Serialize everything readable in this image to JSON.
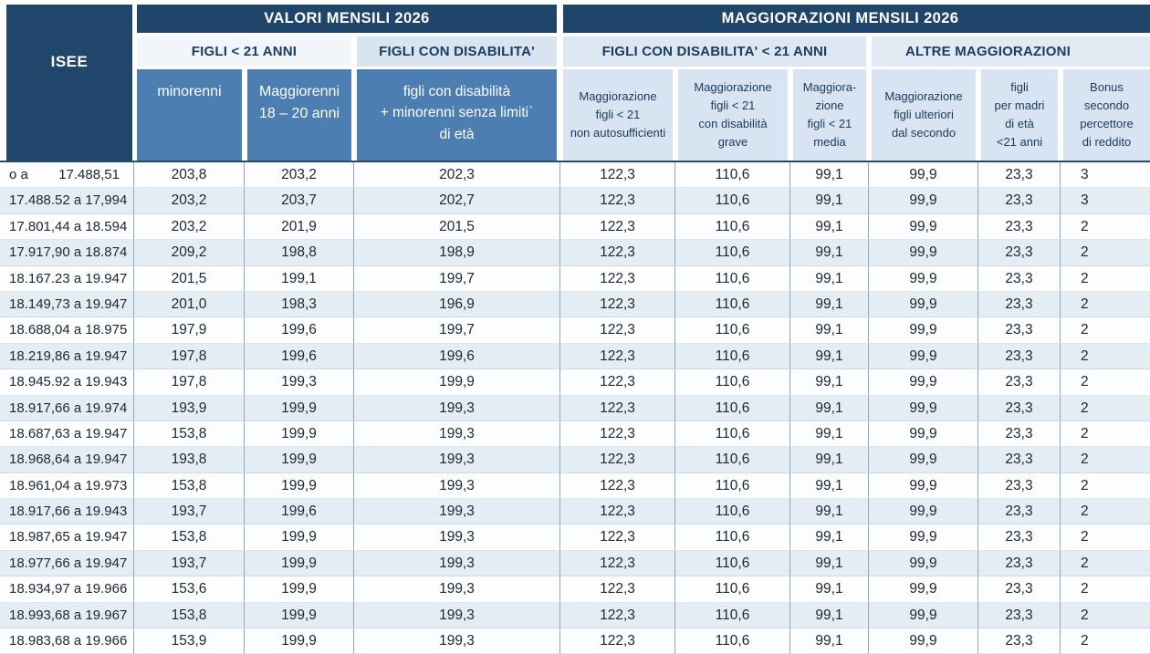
{
  "header": {
    "isee": "ISEE",
    "band_valori": "VALORI MENSILI 2026",
    "band_maggiorazioni": "MAGGIORAZIONI MENSILI 2026",
    "group_figli_u21": "FIGLI < 21 ANNI",
    "group_figli_disabilita": "FIGLI CON DISABILITA'",
    "group_figli_disabilita_u21": "FIGLI CON DISABILITA' < 21 ANNI",
    "group_altre_maggiorazioni": "ALTRE MAGGIORAZIONI",
    "columns": [
      "minorenni",
      "Maggiorenni\n18 – 20 anni",
      "figli con disabilità\n+ minorenni senza limiti`\ndi età",
      "Maggiorazione\nfigli < 21\nnon autosufficienti",
      "Maggiorazione\nfigli < 21\ncon disabilità\ngrave",
      "Maggiora-\nzione\nfigli < 21\nmedia",
      "Maggiorazione\nfigli ulteriori\ndal secondo",
      "figli\nper madri\ndi età\n<21 anni",
      "Bonus\nsecondo\npercettore\ndi reddito"
    ]
  },
  "rows": [
    {
      "isee": "o a        17.488,51",
      "values": [
        "203,8",
        "203,2",
        "202,3",
        "122,3",
        "110,6",
        "99,1",
        "99,9",
        "23,3",
        "3"
      ]
    },
    {
      "isee": "17.488.52 a 17,994",
      "values": [
        "203,2",
        "203,7",
        "202,7",
        "122,3",
        "110,6",
        "99,1",
        "99,9",
        "23,3",
        "3"
      ]
    },
    {
      "isee": "17.801,44 a 18.594",
      "values": [
        "203,2",
        "201,9",
        "201,5",
        "122,3",
        "110,6",
        "99,1",
        "99,9",
        "23,3",
        "2"
      ]
    },
    {
      "isee": "17.917,90 a 18.874",
      "values": [
        "209,2",
        "198,8",
        "198,9",
        "122,3",
        "110,6",
        "99,1",
        "99,9",
        "23,3",
        "2"
      ]
    },
    {
      "isee": "18.167.23 a 19.947",
      "values": [
        "201,5",
        "199,1",
        "199,7",
        "122,3",
        "110,6",
        "99,1",
        "99,9",
        "23,3",
        "2"
      ]
    },
    {
      "isee": "18.149,73 a 19.947",
      "values": [
        "201,0",
        "198,3",
        "196,9",
        "122,3",
        "110,6",
        "99,1",
        "99,9",
        "23,3",
        "2"
      ]
    },
    {
      "isee": "18.688,04 a 18.975",
      "values": [
        "197,9",
        "199,6",
        "199,7",
        "122,3",
        "110,6",
        "99,1",
        "99,9",
        "23,3",
        "2"
      ]
    },
    {
      "isee": "18.219,86 a 19.947",
      "values": [
        "197,8",
        "199,6",
        "199,6",
        "122,3",
        "110,6",
        "99,1",
        "99,9",
        "23,3",
        "2"
      ]
    },
    {
      "isee": "18.945.92 a 19.943",
      "values": [
        "197,8",
        "199,3",
        "199,9",
        "122,3",
        "110,6",
        "99,1",
        "99,9",
        "23,3",
        "2"
      ]
    },
    {
      "isee": "18.917,66 a 19.974",
      "values": [
        "193,9",
        "199,9",
        "199,3",
        "122,3",
        "110,6",
        "99,1",
        "99,9",
        "23,3",
        "2"
      ]
    },
    {
      "isee": "18.687,63 a 19.947",
      "values": [
        "153,8",
        "199,9",
        "199,3",
        "122,3",
        "110,6",
        "99,1",
        "99,9",
        "23,3",
        "2"
      ]
    },
    {
      "isee": "18.968,64 a 19.947",
      "values": [
        "193,8",
        "199,9",
        "199,3",
        "122,3",
        "110,6",
        "99,1",
        "99,9",
        "23,3",
        "2"
      ]
    },
    {
      "isee": "18.961,04 a 19.973",
      "values": [
        "153,8",
        "199,9",
        "199,3",
        "122,3",
        "110,6",
        "99,1",
        "99,9",
        "23,3",
        "2"
      ]
    },
    {
      "isee": "18.917,66 a 19.943",
      "values": [
        "193,7",
        "199,6",
        "199,3",
        "122,3",
        "110,6",
        "99,1",
        "99,9",
        "23,3",
        "2"
      ]
    },
    {
      "isee": "18.987,65 a 19.947",
      "values": [
        "153,8",
        "199,9",
        "199,3",
        "122,3",
        "110,6",
        "99,1",
        "99,9",
        "23,3",
        "2"
      ]
    },
    {
      "isee": "18.977,66 a 19.947",
      "values": [
        "193,7",
        "199,9",
        "199,3",
        "122,3",
        "110,6",
        "99,1",
        "99,9",
        "23,3",
        "2"
      ]
    },
    {
      "isee": "18.934,97 a 19.966",
      "values": [
        "153,6",
        "199,9",
        "199,3",
        "122,3",
        "110,6",
        "99,1",
        "99,9",
        "23,3",
        "2"
      ]
    },
    {
      "isee": "18.993,68 a 19.967",
      "values": [
        "153,8",
        "199,9",
        "199,3",
        "122,3",
        "110,6",
        "99,1",
        "99,9",
        "23,3",
        "2"
      ]
    },
    {
      "isee": "18.983,68 a 19.966",
      "values": [
        "153,9",
        "199,9",
        "199,3",
        "122,3",
        "110,6",
        "99,1",
        "99,9",
        "23,3",
        "2"
      ]
    }
  ],
  "colors": {
    "band_navy": "#20456a",
    "isee_navy": "#21466b",
    "steel_blue": "#4c7eb2",
    "light_blue_header": "#d8e4f1",
    "stripe": "#e4ecf4",
    "border": "#90a6bc",
    "text_navy": "#1c3c60"
  }
}
